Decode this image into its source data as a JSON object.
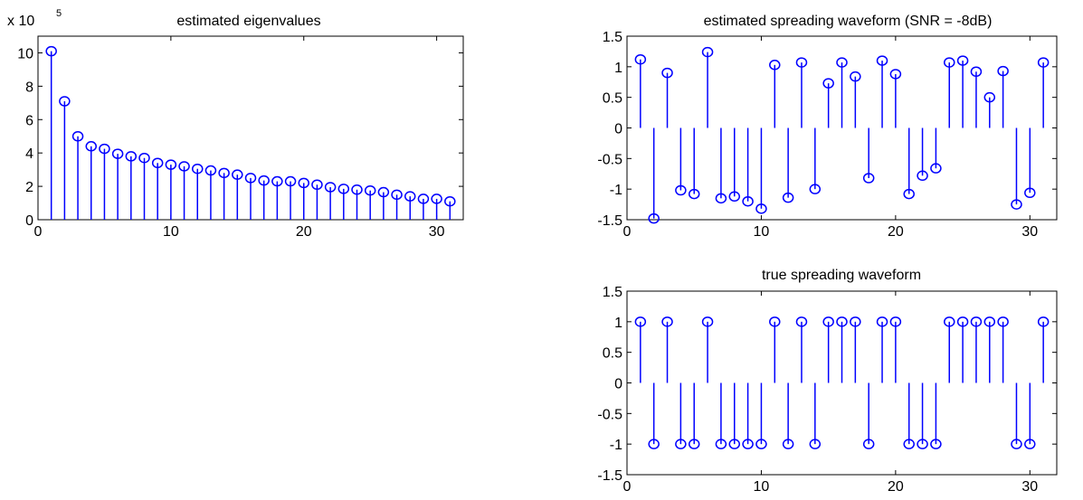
{
  "figure": {
    "background": "#ffffff",
    "stem_color": "#0000ff",
    "axis_color": "#000000"
  },
  "chart_data": [
    {
      "id": "eigen",
      "type": "stem",
      "title": "estimated eigenvalues",
      "xlabel": "",
      "ylabel": "",
      "y_multiplier_label": "x 10",
      "y_multiplier_exponent": "5",
      "xlim": [
        0,
        32
      ],
      "ylim": [
        0,
        11
      ],
      "xticks": [
        0,
        10,
        20,
        30
      ],
      "xtick_labels": [
        "0",
        "10",
        "20",
        "30"
      ],
      "yticks": [
        0,
        2,
        4,
        6,
        8,
        10
      ],
      "ytick_labels": [
        "0",
        "2",
        "4",
        "6",
        "8",
        "10"
      ],
      "grid": false,
      "x": [
        1,
        2,
        3,
        4,
        5,
        6,
        7,
        8,
        9,
        10,
        11,
        12,
        13,
        14,
        15,
        16,
        17,
        18,
        19,
        20,
        21,
        22,
        23,
        24,
        25,
        26,
        27,
        28,
        29,
        30,
        31
      ],
      "y": [
        10.1,
        7.1,
        5.0,
        4.4,
        4.25,
        3.95,
        3.8,
        3.7,
        3.4,
        3.3,
        3.2,
        3.05,
        2.95,
        2.8,
        2.7,
        2.5,
        2.35,
        2.3,
        2.3,
        2.2,
        2.1,
        1.95,
        1.85,
        1.8,
        1.75,
        1.65,
        1.5,
        1.4,
        1.25,
        1.25,
        1.1
      ]
    },
    {
      "id": "estimated",
      "type": "stem",
      "title": "estimated spreading waveform (SNR = -8dB)",
      "xlabel": "",
      "ylabel": "",
      "xlim": [
        0,
        32
      ],
      "ylim": [
        -1.5,
        1.5
      ],
      "xticks": [
        0,
        10,
        20,
        30
      ],
      "xtick_labels": [
        "0",
        "10",
        "20",
        "30"
      ],
      "yticks": [
        -1.5,
        -1,
        -0.5,
        0,
        0.5,
        1,
        1.5
      ],
      "ytick_labels": [
        "-1.5",
        "-1",
        "-0.5",
        "0",
        "0.5",
        "1",
        "1.5"
      ],
      "grid": false,
      "x": [
        1,
        2,
        3,
        4,
        5,
        6,
        7,
        8,
        9,
        10,
        11,
        12,
        13,
        14,
        15,
        16,
        17,
        18,
        19,
        20,
        21,
        22,
        23,
        24,
        25,
        26,
        27,
        28,
        29,
        30,
        31
      ],
      "y": [
        1.12,
        -1.48,
        0.9,
        -1.02,
        -1.08,
        1.24,
        -1.15,
        -1.12,
        -1.2,
        -1.32,
        1.03,
        -1.14,
        1.07,
        -1.0,
        0.73,
        1.07,
        0.84,
        -0.82,
        1.1,
        0.88,
        -1.08,
        -0.78,
        -0.66,
        1.07,
        1.1,
        0.92,
        0.5,
        0.93,
        -1.25,
        -1.06,
        1.07
      ]
    },
    {
      "id": "true",
      "type": "stem",
      "title": "true spreading waveform",
      "xlabel": "",
      "ylabel": "",
      "xlim": [
        0,
        32
      ],
      "ylim": [
        -1.5,
        1.5
      ],
      "xticks": [
        0,
        10,
        20,
        30
      ],
      "xtick_labels": [
        "0",
        "10",
        "20",
        "30"
      ],
      "yticks": [
        -1.5,
        -1,
        -0.5,
        0,
        0.5,
        1,
        1.5
      ],
      "ytick_labels": [
        "-1.5",
        "-1",
        "-0.5",
        "0",
        "0.5",
        "1",
        "1.5"
      ],
      "grid": false,
      "x": [
        1,
        2,
        3,
        4,
        5,
        6,
        7,
        8,
        9,
        10,
        11,
        12,
        13,
        14,
        15,
        16,
        17,
        18,
        19,
        20,
        21,
        22,
        23,
        24,
        25,
        26,
        27,
        28,
        29,
        30,
        31
      ],
      "y": [
        1,
        -1,
        1,
        -1,
        -1,
        1,
        -1,
        -1,
        -1,
        -1,
        1,
        -1,
        1,
        -1,
        1,
        1,
        1,
        -1,
        1,
        1,
        -1,
        -1,
        -1,
        1,
        1,
        1,
        1,
        1,
        -1,
        -1,
        1
      ]
    }
  ]
}
